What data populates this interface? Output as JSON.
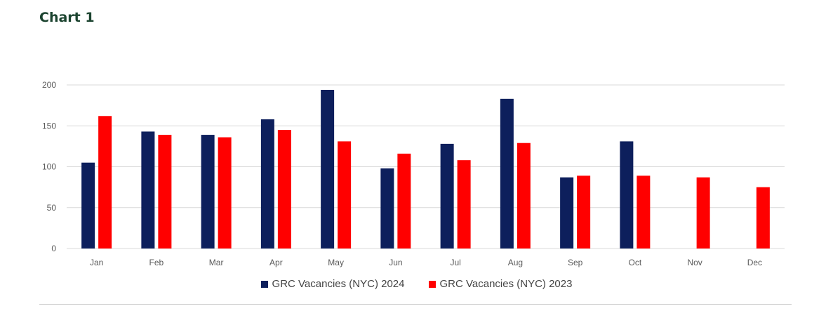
{
  "heading": "Chart 1",
  "chart_data": {
    "type": "bar",
    "title": "",
    "xlabel": "",
    "ylabel": "",
    "ylim": [
      0,
      200
    ],
    "yticks": [
      0,
      50,
      100,
      150,
      200
    ],
    "grid": true,
    "legend_position": "bottom",
    "categories": [
      "Jan",
      "Feb",
      "Mar",
      "Apr",
      "May",
      "Jun",
      "Jul",
      "Aug",
      "Sep",
      "Oct",
      "Nov",
      "Dec"
    ],
    "series": [
      {
        "name": "GRC Vacancies (NYC) 2024",
        "color": "#0d1f5c",
        "values": [
          105,
          143,
          139,
          158,
          194,
          98,
          128,
          183,
          87,
          131,
          null,
          null
        ]
      },
      {
        "name": "GRC Vacancies (NYC) 2023",
        "color": "#ff0000",
        "values": [
          162,
          139,
          136,
          145,
          131,
          116,
          108,
          129,
          89,
          89,
          87,
          75
        ]
      }
    ]
  },
  "colors": {
    "gridline": "#d9d9d9",
    "axis_text": "#595959"
  }
}
